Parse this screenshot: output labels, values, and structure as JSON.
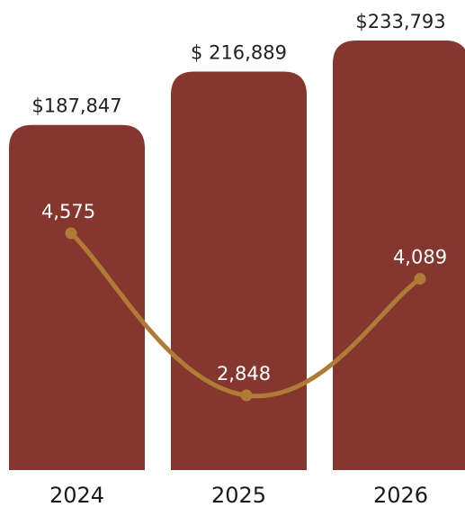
{
  "chart_data": {
    "type": "bar",
    "categories": [
      "2024",
      "2025",
      "2026"
    ],
    "series": [
      {
        "type": "bar",
        "values": [
          187847,
          216889,
          233793
        ],
        "labels": [
          "$187,847",
          "$ 216,889",
          "$233,793"
        ],
        "color": "#85362e"
      },
      {
        "type": "line",
        "values": [
          4575,
          2848,
          4089
        ],
        "labels": [
          "4,575",
          "2,848",
          "4,089"
        ],
        "color": "#b07b37"
      }
    ],
    "grid": false,
    "legend": "none"
  }
}
